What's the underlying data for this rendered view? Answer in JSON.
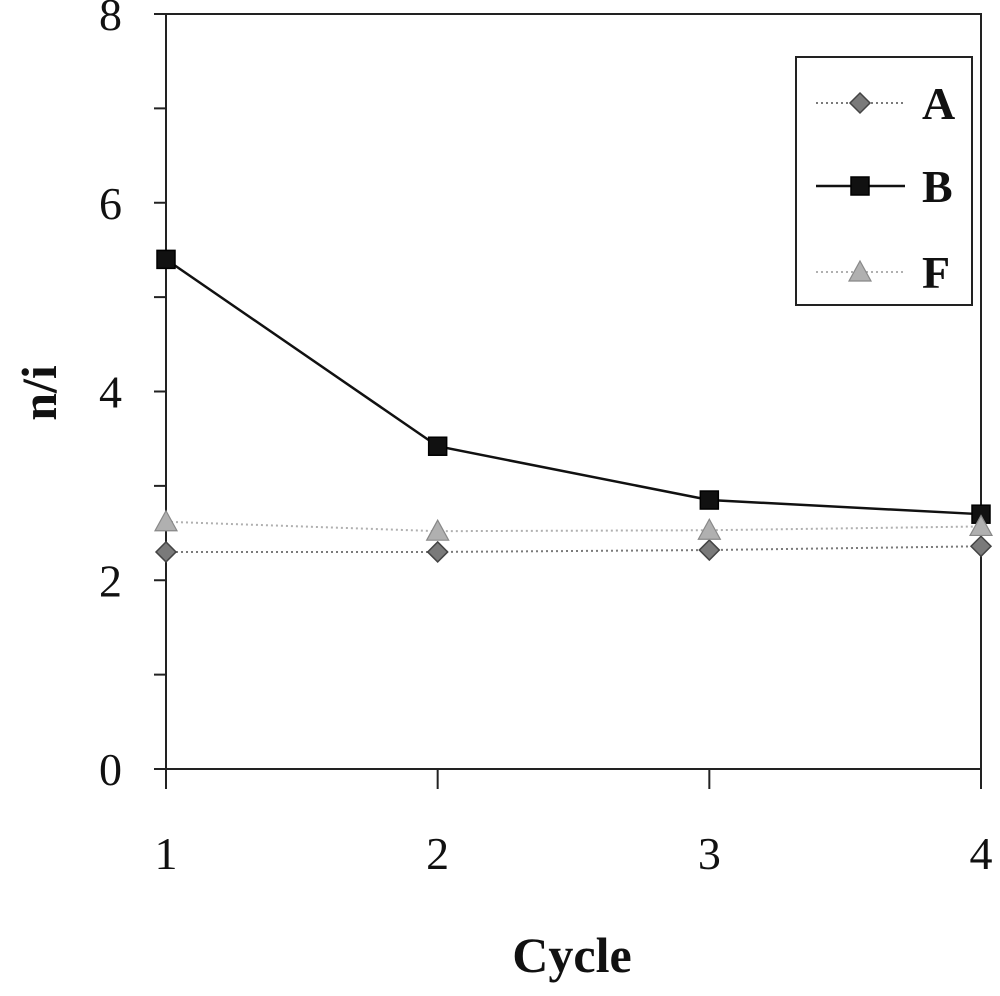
{
  "chart_data": {
    "type": "line",
    "xlabel": "Cycle",
    "ylabel": "n/i",
    "x": [
      1,
      2,
      3,
      4
    ],
    "x_ticks": [
      "1",
      "2",
      "3",
      "4"
    ],
    "ylim": [
      0,
      8
    ],
    "y_ticks": [
      "0",
      "2",
      "4",
      "6",
      "8"
    ],
    "y_minor_step": 1,
    "grid": false,
    "legend_position": "top-right",
    "series": [
      {
        "name": "A",
        "values": [
          2.3,
          2.3,
          2.32,
          2.36
        ],
        "marker": "diamond",
        "line_style": "dotted",
        "color": "#7a7a7a"
      },
      {
        "name": "B",
        "values": [
          5.4,
          3.42,
          2.85,
          2.7
        ],
        "marker": "square",
        "line_style": "solid",
        "color": "#111111"
      },
      {
        "name": "F",
        "values": [
          2.62,
          2.52,
          2.53,
          2.57
        ],
        "marker": "triangle",
        "line_style": "dotted",
        "color": "#b0b0b0"
      }
    ]
  }
}
